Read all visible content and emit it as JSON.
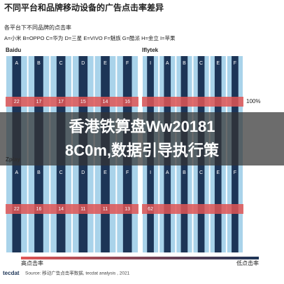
{
  "header": {
    "title": "不同平台和品牌移动设备的广告点击率差异",
    "subtitle": "各平台下不同品牌的点击率",
    "legend": "A=小米  B=OPPO  C=华为  D=三星  E=VIVO  F=魅族  G=酷派  H=金立  I=苹果"
  },
  "panels": [
    {
      "name": "Baidu",
      "columns": [
        "A",
        "B",
        "C",
        "D",
        "E",
        "F"
      ],
      "values": [
        "22",
        "17",
        "17",
        "15",
        "14",
        "16"
      ]
    },
    {
      "name": "Iflytek",
      "columns": [
        "I",
        "A",
        "B",
        "C",
        "E",
        "F"
      ],
      "values": [],
      "note": "100%"
    },
    {
      "name": "Zplay",
      "columns": [
        "A",
        "B",
        "C",
        "D",
        "E",
        "F"
      ],
      "values": [
        "22",
        "16",
        "14",
        "11",
        "11",
        "13"
      ]
    },
    {
      "columns": [
        "I",
        "A",
        "B",
        "C",
        "E",
        "F"
      ],
      "values": [
        "62"
      ]
    }
  ],
  "banner": {
    "line1": "香港铁算盘Ww20181",
    "line2": "8C0m,数据引导执行策"
  },
  "footer": {
    "high": "高点击率",
    "low": "低点击率",
    "source": "Source: 移动广告点击率数据, tecdat analysis , 2021",
    "logo": "tecdat"
  }
}
